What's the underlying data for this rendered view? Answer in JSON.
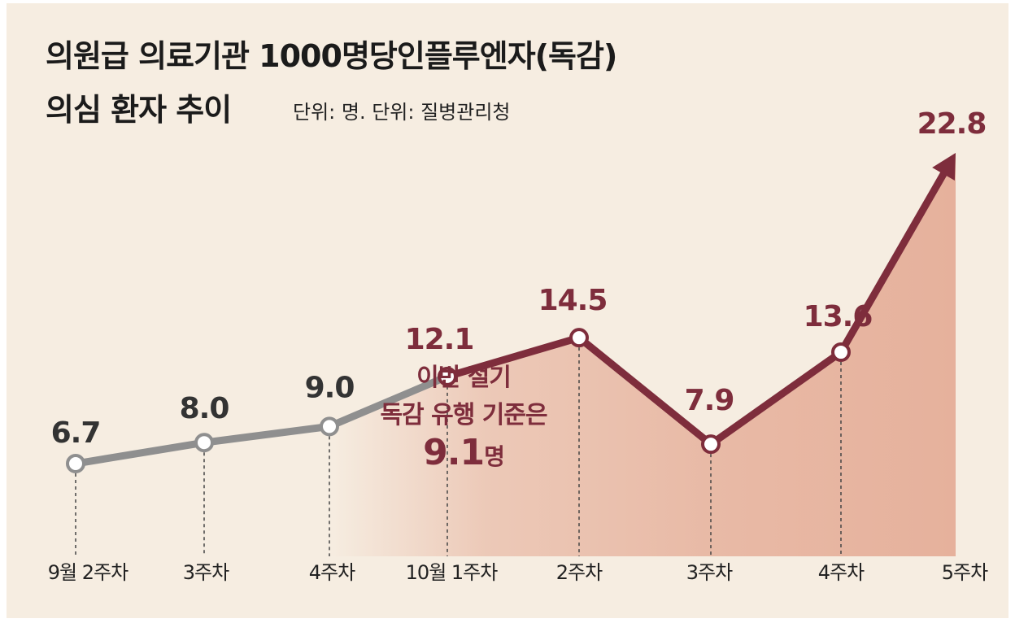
{
  "chart_data": {
    "type": "line",
    "title_line1": "의원급 의료기관 1000명당인플루엔자(독감)",
    "title_line2": "의심 환자 추이",
    "unit_note": "단위: 명. 단위: 질병관리청",
    "categories": [
      "9월 2주차",
      "3주차",
      "4주차",
      "10월 1주차",
      "2주차",
      "3주차",
      "4주차",
      "5주차"
    ],
    "series": [
      {
        "values": [
          6.7,
          8.0,
          9.0,
          12.1,
          14.5,
          7.9,
          13.6,
          22.8
        ]
      }
    ],
    "data_labels": [
      "6.7",
      "8.0",
      "9.0",
      "12.1",
      "14.5",
      "7.9",
      "13.6",
      "22.8"
    ],
    "highlight_start_index": 3,
    "ylim": [
      0,
      25
    ],
    "grid": false,
    "legend": "none",
    "annotation": {
      "line1": "이번 절기",
      "line2": "독감 유행 기준은",
      "value": "9.1",
      "unit": "명"
    },
    "colors": {
      "background": "#f6ede1",
      "before_line": "#8f8f8f",
      "highlight_line": "#7e2d3c",
      "area_fill": "#e6b19c",
      "label_before": "#333333",
      "label_highlight": "#7e2d3c"
    }
  }
}
